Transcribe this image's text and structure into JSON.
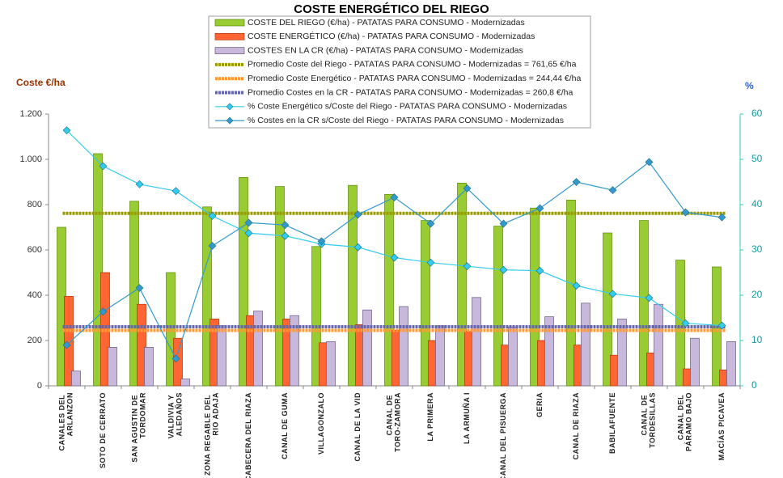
{
  "chart_data": {
    "type": "combo",
    "title": "COSTE ENERGÉTICO DEL RIEGO",
    "y_label": "Coste €/ha",
    "y2_label": "%",
    "categories": [
      "CANALES DEL ARLANZON",
      "SOTO DE CERRATO",
      "SAN AGUSTIN DE TORDOMAR",
      "VALDIVIA Y ALEDAÑOS",
      "ZONA REGABLE DEL RIO ADAJA",
      "CABECERA DEL RIAZA",
      "CANAL DE GUMA",
      "VILLAGONZALO",
      "CANAL DE LA VID",
      "CANAL DE TORO-ZAMORA",
      "LA PRIMERA",
      "LA ARMUÑA I",
      "CANAL DEL PISUERGA",
      "GERIA",
      "CANAL DE RIAZA",
      "BABILAFUENTE",
      "CANAL DE TORDESILLAS",
      "CANAL DEL PÁRAMO BAJO",
      "MACÍAS PICAVEA"
    ],
    "ylim": [
      0,
      1200
    ],
    "yticks": [
      0,
      200,
      400,
      600,
      800,
      {
        "value": 1000,
        "label": "1.000"
      },
      {
        "value": 1200,
        "label": "1.200"
      }
    ],
    "y2lim": [
      0,
      60
    ],
    "y2ticks": [
      0,
      10,
      20,
      30,
      40,
      50,
      60
    ],
    "grid": false,
    "series": [
      {
        "name": "COSTE DEL RIEGO (€/ha) - PATATAS PARA CONSUMO - Modernizadas",
        "type": "bar",
        "color": "#99cc33",
        "values": [
          700,
          1025,
          815,
          500,
          790,
          920,
          880,
          615,
          885,
          845,
          730,
          895,
          705,
          785,
          820,
          675,
          730,
          555,
          525
        ]
      },
      {
        "name": "COSTE ENERGÉTICO (€/ha) - PATATAS PARA CONSUMO - Modernizadas",
        "type": "bar",
        "color": "#ff6633",
        "values": [
          395,
          500,
          360,
          210,
          295,
          310,
          295,
          190,
          270,
          245,
          200,
          240,
          180,
          200,
          180,
          135,
          145,
          75,
          70
        ]
      },
      {
        "name": "COSTES EN LA CR (€/ha) - PATATAS PARA CONSUMO - Modernizadas",
        "type": "bar",
        "color": "#c8b8dc",
        "values": [
          65,
          170,
          170,
          30,
          265,
          330,
          310,
          195,
          335,
          350,
          265,
          390,
          260,
          305,
          365,
          295,
          360,
          210,
          195
        ]
      },
      {
        "name": "Promedio Coste del Riego - PATATAS PARA CONSUMO - Modernizadas = 761,65 €/ha",
        "type": "hline",
        "color": "#999900",
        "value": 761.65
      },
      {
        "name": "Promedio Coste Energético - PATATAS PARA CONSUMO - Modernizadas = 244,44 €/ha",
        "type": "hline",
        "color": "#ff9933",
        "value": 244.44
      },
      {
        "name": "Promedio Costes en la CR - PATATAS PARA CONSUMO - Modernizadas = 260,8 €/ha",
        "type": "hline",
        "color": "#6666aa",
        "value": 260.8
      },
      {
        "name": "% Coste Energético s/Coste del Riego - PATATAS PARA CONSUMO - Modernizadas",
        "type": "line",
        "axis": "y2",
        "color": "#33ccee",
        "values": [
          56.4,
          48.5,
          44.5,
          43,
          37.5,
          33.7,
          33.1,
          31.3,
          30.6,
          28.3,
          27.2,
          26.4,
          25.6,
          25.4,
          22.1,
          20.3,
          19.4,
          13.8,
          13.3
        ]
      },
      {
        "name": "% Costes en la CR s/Coste del Riego - PATATAS PARA CONSUMO - Modernizadas",
        "type": "line",
        "axis": "y2",
        "color": "#3399cc",
        "values": [
          9,
          16.4,
          21.6,
          6,
          30.9,
          36,
          35.5,
          31.9,
          37.8,
          41.6,
          35.8,
          43.6,
          35.8,
          39.2,
          45,
          43.2,
          49.4,
          38.3,
          37.2
        ]
      }
    ]
  }
}
